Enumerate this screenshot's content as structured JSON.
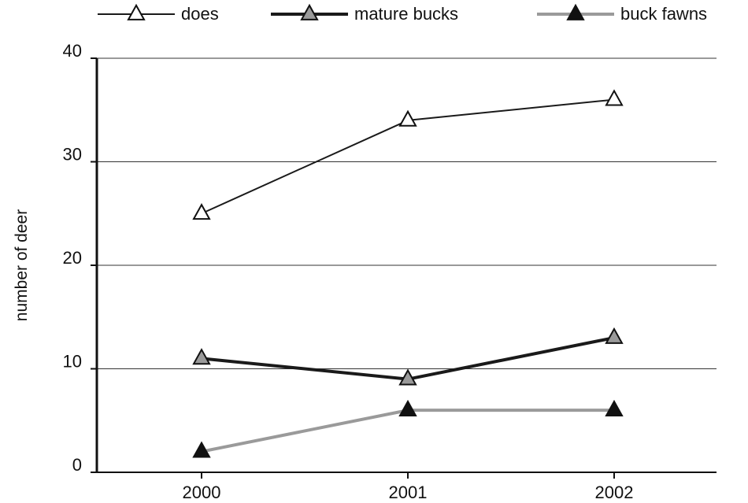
{
  "chart_data": {
    "type": "line",
    "title": "",
    "xlabel": "",
    "ylabel": "number of deer",
    "categories": [
      "2000",
      "2001",
      "2002"
    ],
    "ylim": [
      0,
      40
    ],
    "yticks": [
      "0",
      "10",
      "20",
      "30",
      "40"
    ],
    "grid": "horizontal",
    "legend_position": "top",
    "series": [
      {
        "name": "does",
        "values": [
          25,
          34,
          36
        ],
        "line_color": "#1a1a1a",
        "marker": "triangle",
        "marker_fill": "#ffffff"
      },
      {
        "name": "mature bucks",
        "values": [
          11,
          9,
          13
        ],
        "line_color": "#1a1a1a",
        "marker": "triangle",
        "marker_fill": "#9a9a9a"
      },
      {
        "name": "buck fawns",
        "values": [
          2,
          6,
          6
        ],
        "line_color": "#9a9a9a",
        "marker": "triangle",
        "marker_fill": "#111111"
      }
    ]
  }
}
